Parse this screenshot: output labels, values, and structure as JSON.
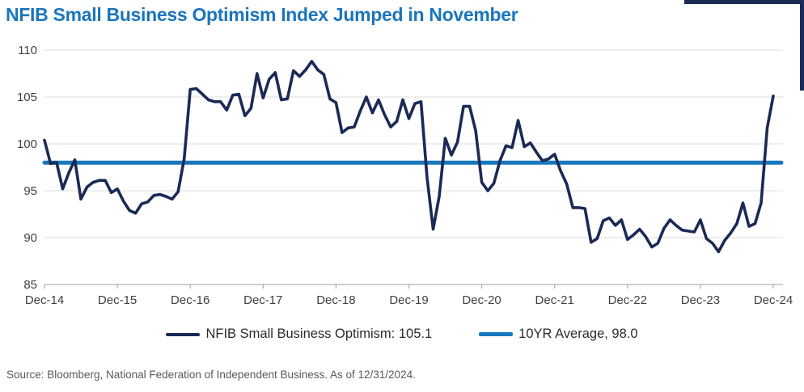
{
  "page": {
    "title": "NFIB Small Business Optimism Index Jumped in November",
    "source_note": "Source: Bloomberg, National Federation of Independent Business. As of 12/31/2024."
  },
  "colors": {
    "title_blue": "#1B75BC",
    "series_navy": "#1B2A55",
    "average_blue": "#1878BE",
    "gridline": "#E3E3E3",
    "axis_line": "#B0B0B0",
    "tick_label": "#404040",
    "legend_text": "#2B2B2B",
    "source_text": "#595959",
    "corner_accent": "#1B2A55"
  },
  "legend": {
    "series_label": "NFIB Small Business Optimism: 105.1",
    "average_label": "10YR Average, 98.0"
  },
  "chart_data": {
    "type": "line",
    "title": "NFIB Small Business Optimism Index Jumped in November",
    "xlabel": "",
    "ylabel": "",
    "ylim": [
      85,
      110
    ],
    "y_ticks": [
      85,
      90,
      95,
      100,
      105,
      110
    ],
    "x_tick_labels": [
      "Dec-14",
      "Dec-15",
      "Dec-16",
      "Dec-17",
      "Dec-18",
      "Dec-19",
      "Dec-20",
      "Dec-21",
      "Dec-22",
      "Dec-23",
      "Dec-24"
    ],
    "x_frequency": "monthly",
    "x_range": [
      "Dec-2014",
      "Dec-2024"
    ],
    "grid": "horizontal",
    "legend_position": "bottom",
    "average_line": {
      "label": "10YR Average, 98.0",
      "value": 98.0
    },
    "series": [
      {
        "name": "NFIB Small Business Optimism",
        "latest_value": 105.1,
        "values": [
          100.4,
          97.9,
          98.0,
          95.2,
          96.9,
          98.3,
          94.1,
          95.4,
          95.9,
          96.1,
          96.1,
          94.8,
          95.2,
          93.9,
          92.9,
          92.6,
          93.6,
          93.8,
          94.5,
          94.6,
          94.4,
          94.1,
          94.9,
          98.4,
          105.8,
          105.9,
          105.3,
          104.7,
          104.5,
          104.5,
          103.6,
          105.2,
          105.3,
          103.0,
          103.8,
          107.5,
          104.9,
          106.9,
          107.6,
          104.7,
          104.8,
          107.8,
          107.2,
          107.9,
          108.8,
          107.9,
          107.4,
          104.8,
          104.4,
          101.2,
          101.7,
          101.8,
          103.5,
          105.0,
          103.3,
          104.7,
          103.1,
          101.8,
          102.4,
          104.7,
          102.7,
          104.3,
          104.5,
          96.4,
          90.9,
          94.4,
          100.6,
          98.8,
          100.2,
          104.0,
          104.0,
          101.4,
          95.9,
          95.0,
          95.8,
          98.2,
          99.8,
          99.6,
          102.5,
          99.7,
          100.1,
          99.1,
          98.2,
          98.4,
          98.9,
          97.1,
          95.7,
          93.2,
          93.2,
          93.1,
          89.5,
          89.9,
          91.8,
          92.1,
          91.3,
          91.9,
          89.8,
          90.3,
          90.9,
          90.1,
          89.0,
          89.4,
          91.0,
          91.9,
          91.3,
          90.8,
          90.7,
          90.6,
          91.9,
          89.9,
          89.4,
          88.5,
          89.7,
          90.5,
          91.5,
          93.7,
          91.2,
          91.5,
          93.7,
          101.7,
          105.1
        ]
      }
    ]
  }
}
